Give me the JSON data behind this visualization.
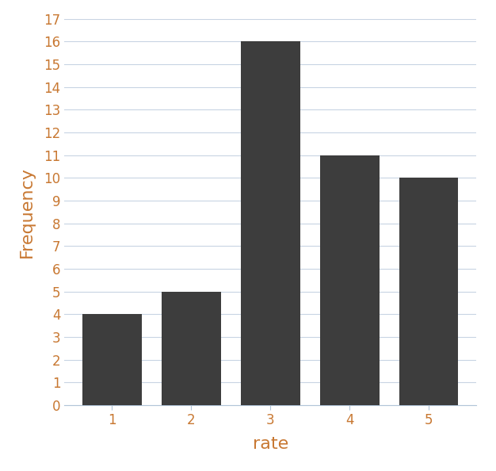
{
  "categories": [
    1,
    2,
    3,
    4,
    5
  ],
  "values": [
    4,
    5,
    16,
    11,
    10
  ],
  "bar_color": "#3d3d3d",
  "xlabel": "rate",
  "ylabel": "Frequency",
  "ylim": [
    0,
    17
  ],
  "yticks": [
    0,
    1,
    2,
    3,
    4,
    5,
    6,
    7,
    8,
    9,
    10,
    11,
    12,
    13,
    14,
    15,
    16,
    17
  ],
  "xticks": [
    1,
    2,
    3,
    4,
    5
  ],
  "background_color": "#ffffff",
  "grid_color": "#c8d4e3",
  "xlabel_fontsize": 16,
  "ylabel_fontsize": 16,
  "tick_fontsize": 12,
  "bar_width": 0.75,
  "edge_color": "none",
  "label_color": "#c87832",
  "tick_color": "#c87832",
  "spine_color": "#b0c4d8"
}
